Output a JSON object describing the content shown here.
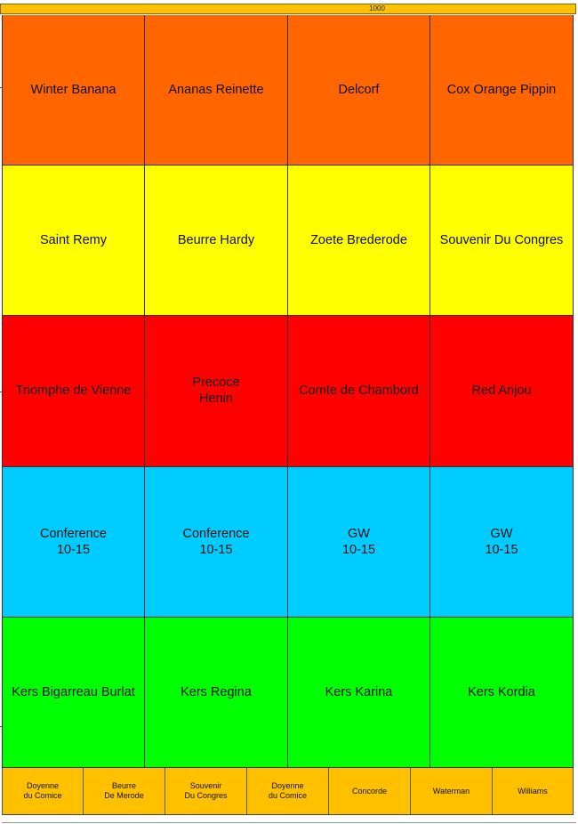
{
  "top_bar": {
    "label": "1000",
    "color": "#ffc000"
  },
  "rows": [
    {
      "color": "#ff6600",
      "cells": [
        "Winter Banana",
        "Ananas Reinette",
        "Delcorf",
        "Cox Orange Pippin"
      ]
    },
    {
      "color": "#ffff00",
      "cells": [
        "Saint Remy",
        "Beurre Hardy",
        "Zoete Brederode",
        "Souvenir Du Congres"
      ]
    },
    {
      "color": "#ff0000",
      "cells": [
        "Triomphe de Vienne",
        "Precoce\nHenin",
        "Comte de Chambord",
        "Red Anjou"
      ]
    },
    {
      "color": "#00ccff",
      "cells": [
        "Conference\n10-15",
        "Conference\n10-15",
        "GW\n10-15",
        "GW\n10-15"
      ]
    },
    {
      "color": "#00ff00",
      "cells": [
        "Kers Bigarreau Burlat",
        "Kers Regina",
        "Kers Karina",
        "Kers Kordia"
      ]
    }
  ],
  "bottom_row": {
    "color": "#ffc000",
    "cells": [
      "Doyenne\ndu Comice",
      "Beurre\nDe Merode",
      "Souvenir\nDu Congres",
      "Doyenne\ndu Comice",
      "Concorde",
      "Waterman",
      "Williams"
    ]
  }
}
